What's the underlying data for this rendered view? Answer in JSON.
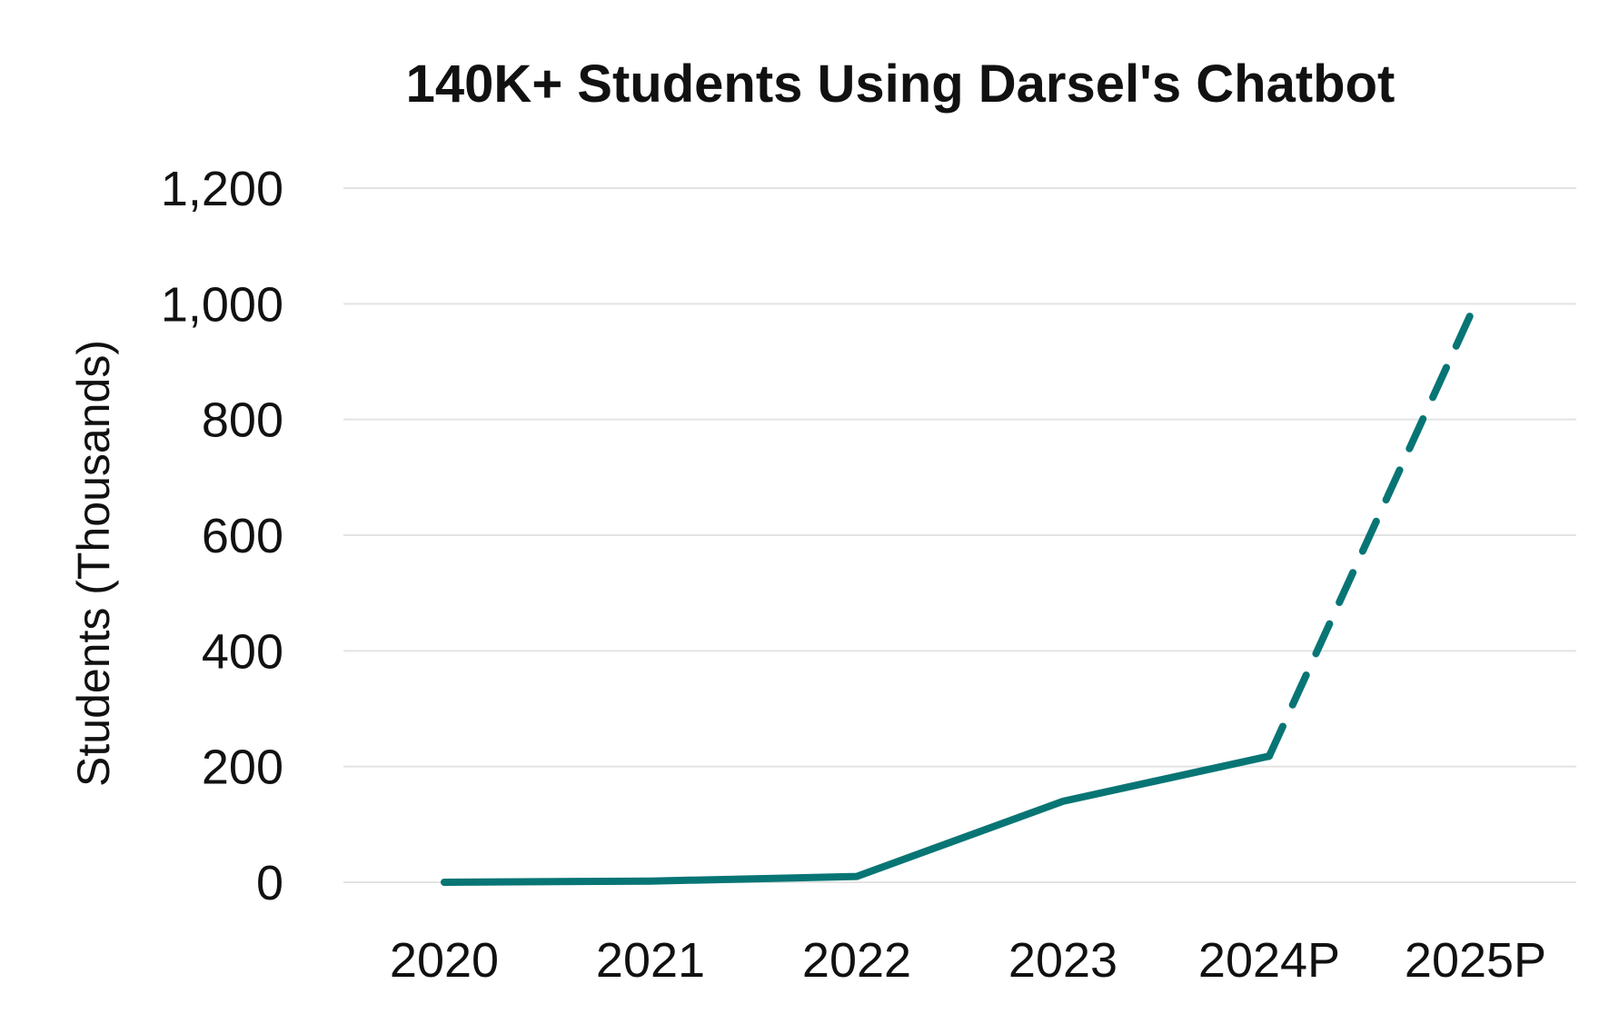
{
  "chart_data": {
    "type": "line",
    "title": "140K+ Students Using Darsel's Chatbot",
    "xlabel": "",
    "ylabel": "Students (Thousands)",
    "categories": [
      "2020",
      "2021",
      "2022",
      "2023",
      "2024P",
      "2025P"
    ],
    "ylim": [
      0,
      1200
    ],
    "yticks": [
      0,
      200,
      400,
      600,
      800,
      1000,
      1200
    ],
    "ytick_labels": [
      "0",
      "200",
      "400",
      "600",
      "800",
      "1,000",
      "1,200"
    ],
    "grid": true,
    "series": [
      {
        "values": [
          0,
          2,
          10,
          140,
          218,
          1000
        ],
        "projected_from_index": 4,
        "color": "#087575"
      }
    ]
  }
}
